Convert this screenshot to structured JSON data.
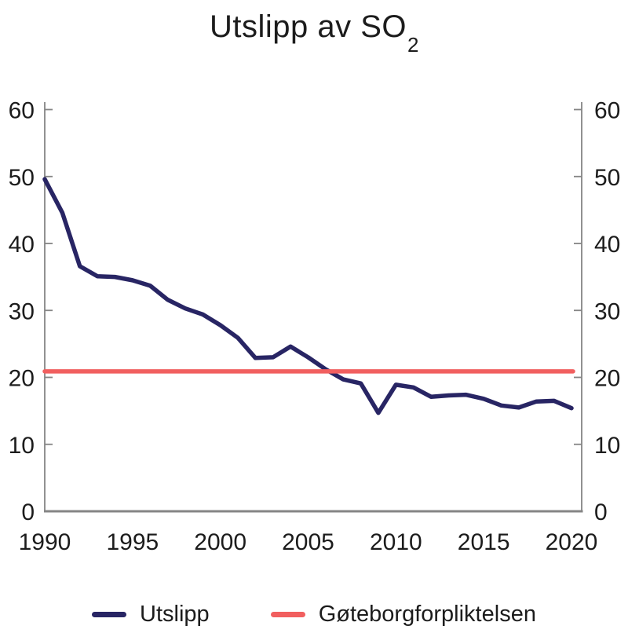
{
  "figure": {
    "title_main": "Utslipp av SO",
    "title_sub": "2"
  },
  "colors": {
    "emissions_line": "#282564",
    "commitment_line": "#F15F5F",
    "axis": "#858585",
    "text": "#1C1C1C"
  },
  "legend": [
    {
      "label": "Utslipp",
      "color": "#282564"
    },
    {
      "label": "Gøteborgforpliktelsen",
      "color": "#F15F5F"
    }
  ],
  "chart_data": {
    "type": "line",
    "title": "Utslipp av SO₂",
    "xlabel": "",
    "ylabel": "",
    "grid": false,
    "legend_position": "bottom",
    "xlim": [
      1990,
      2020.6
    ],
    "ylim": [
      0,
      61.2
    ],
    "xticks": [
      1990,
      1995,
      2000,
      2005,
      2010,
      2015,
      2020
    ],
    "yticks": [
      0,
      10,
      20,
      30,
      40,
      50,
      60
    ],
    "y_axis_sides": "both",
    "x": [
      1990,
      1991,
      1992,
      1993,
      1994,
      1995,
      1996,
      1997,
      1998,
      1999,
      2000,
      2001,
      2002,
      2003,
      2004,
      2005,
      2006,
      2007,
      2008,
      2009,
      2010,
      2011,
      2012,
      2013,
      2014,
      2015,
      2016,
      2017,
      2018,
      2019,
      2020
    ],
    "series": [
      {
        "name": "Utslipp",
        "color": "#282564",
        "values": [
          49.6,
          44.6,
          36.6,
          35.1,
          35.0,
          34.5,
          33.7,
          31.6,
          30.3,
          29.4,
          27.8,
          25.9,
          22.9,
          23.0,
          24.6,
          23.0,
          21.2,
          19.7,
          19.1,
          14.7,
          18.9,
          18.5,
          17.1,
          17.3,
          17.4,
          16.8,
          15.8,
          15.5,
          16.4,
          16.5,
          15.4
        ]
      },
      {
        "name": "Gøteborgforpliktelsen",
        "color": "#F15F5F",
        "constant_value": 20.9,
        "x_range": [
          1990,
          2020
        ]
      }
    ]
  }
}
